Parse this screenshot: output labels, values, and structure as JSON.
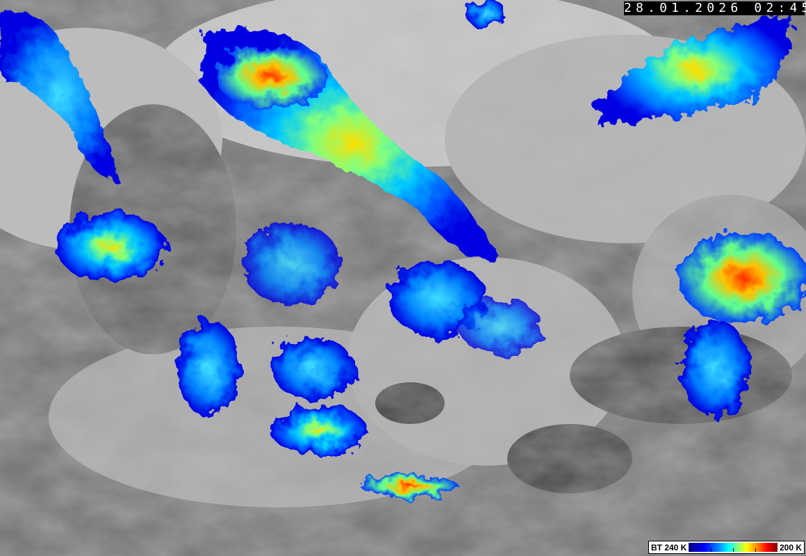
{
  "timestamp": "28.01.2026 02:45",
  "legend": {
    "left_label": "BT 240 K",
    "right_label": "200 K",
    "colors": [
      "#000080",
      "#0000ff",
      "#0080ff",
      "#00ffff",
      "#80ff80",
      "#ffff00",
      "#ff8000",
      "#ff0000",
      "#800000"
    ]
  }
}
